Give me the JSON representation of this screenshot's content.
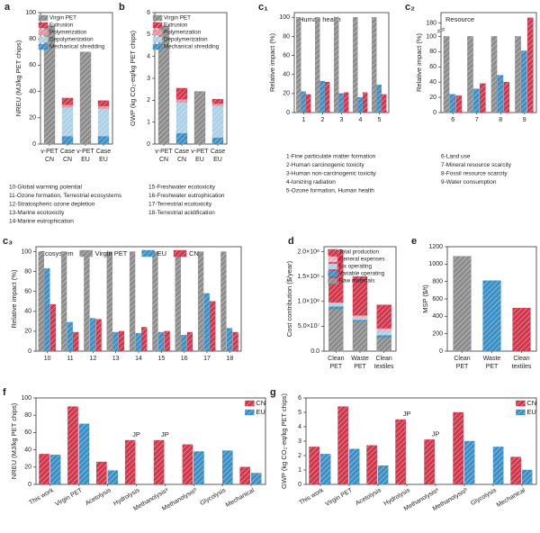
{
  "chart_data": [
    {
      "type": "bar",
      "stacked": true,
      "panel": "a",
      "ylabel": "NREU (MJ/kg PET chips)",
      "categories": [
        [
          "v-PET",
          "CN"
        ],
        [
          "Case",
          "CN"
        ],
        [
          "v-PET",
          "EU"
        ],
        [
          "Case",
          "EU"
        ]
      ],
      "ylim": [
        0,
        100
      ],
      "yticks": [
        0,
        20,
        40,
        60,
        80,
        100
      ],
      "legend": "upper right",
      "series": [
        {
          "name": "Virgin PET",
          "color": "#8c8c8c",
          "values": [
            90,
            null,
            70,
            null
          ]
        },
        {
          "name": "Extrusion",
          "color": "#d2364b",
          "values": [
            null,
            5,
            null,
            4
          ]
        },
        {
          "name": "Polymerization",
          "color": "#e8919f",
          "values": [
            null,
            2,
            null,
            2
          ]
        },
        {
          "name": "Depolymerization",
          "color": "#acd0e6",
          "values": [
            null,
            22,
            null,
            21
          ]
        },
        {
          "name": "Mechanical shredding",
          "color": "#3b8fc5",
          "values": [
            null,
            6,
            null,
            6
          ]
        }
      ]
    },
    {
      "type": "bar",
      "stacked": true,
      "panel": "b",
      "ylabel": "GWP (kg CO₂-eq/kg PET chips)",
      "categories": [
        [
          "v-PET",
          "CN"
        ],
        [
          "Case",
          "CN"
        ],
        [
          "v-PET",
          "EU"
        ],
        [
          "Case",
          "EU"
        ]
      ],
      "ylim": [
        0,
        6
      ],
      "yticks": [
        0,
        1,
        2,
        3,
        4,
        5,
        6
      ],
      "legend": "upper right",
      "series": [
        {
          "name": "Virgin PET",
          "color": "#8c8c8c",
          "values": [
            5.4,
            null,
            2.4,
            null
          ]
        },
        {
          "name": "Extrusion",
          "color": "#d2364b",
          "values": [
            null,
            0.5,
            null,
            0.2
          ]
        },
        {
          "name": "Polymerization",
          "color": "#e8919f",
          "values": [
            null,
            0.15,
            null,
            0.1
          ]
        },
        {
          "name": "Depolymerization",
          "color": "#acd0e6",
          "values": [
            null,
            1.4,
            null,
            1.45
          ]
        },
        {
          "name": "Mechanical shredding",
          "color": "#3b8fc5",
          "values": [
            null,
            0.5,
            null,
            0.3
          ]
        }
      ]
    },
    {
      "type": "bar",
      "panel": "c₁",
      "title": "Human health",
      "ylabel": "Relative impact (%)",
      "categories": [
        "1",
        "2",
        "3",
        "4",
        "5"
      ],
      "ylim": [
        0,
        105
      ],
      "yticks": [
        0,
        20,
        40,
        60,
        80,
        100
      ],
      "series": [
        {
          "color": "#8c8c8c",
          "values": [
            100,
            100,
            100,
            100,
            100
          ]
        },
        {
          "color": "#3b8fc5",
          "values": [
            22,
            33,
            20,
            16,
            29
          ]
        },
        {
          "color": "#d2364b",
          "values": [
            19,
            32,
            21,
            21,
            19
          ]
        }
      ]
    },
    {
      "type": "bar",
      "panel": "c₂",
      "title": "Resource",
      "ylabel": "Relative impact (%)",
      "categories": [
        "6",
        "7",
        "8",
        "9"
      ],
      "ylim": [
        0,
        190
      ],
      "ybreak": [
        105,
        175
      ],
      "yticks": [
        0,
        20,
        40,
        60,
        80,
        100,
        180
      ],
      "series": [
        {
          "color": "#8c8c8c",
          "values": [
            100,
            100,
            100,
            100
          ]
        },
        {
          "color": "#3b8fc5",
          "values": [
            24,
            31,
            49,
            81
          ]
        },
        {
          "color": "#d2364b",
          "values": [
            22,
            38,
            40,
            185
          ]
        }
      ]
    },
    {
      "type": "bar",
      "panel": "c₃",
      "title": "Ecosystem",
      "ylabel": "Relative impact (%)",
      "categories": [
        "10",
        "11",
        "12",
        "13",
        "14",
        "15",
        "16",
        "17",
        "18"
      ],
      "ylim": [
        0,
        105
      ],
      "yticks": [
        0,
        20,
        40,
        60,
        80,
        100
      ],
      "legend": "upper center",
      "series": [
        {
          "name": "Virgin PET",
          "color": "#8c8c8c",
          "values": [
            100,
            100,
            100,
            100,
            100,
            100,
            100,
            100,
            100
          ]
        },
        {
          "name": "EU",
          "color": "#3b8fc5",
          "values": [
            83,
            29,
            33,
            19,
            18,
            19,
            16,
            58,
            23
          ]
        },
        {
          "name": "CN",
          "color": "#d2364b",
          "values": [
            47,
            19,
            32,
            20,
            24,
            20,
            19,
            50,
            19
          ]
        }
      ]
    },
    {
      "type": "bar",
      "stacked": true,
      "panel": "d",
      "ylabel": "Cost contribution ($/year)",
      "categories": [
        [
          "Clean",
          "PET"
        ],
        [
          "Waste",
          "PET"
        ],
        [
          "Clean",
          "textiles"
        ]
      ],
      "ylim": [
        0,
        210000000
      ],
      "yticks": [
        {
          "value": 0,
          "label": "0.0"
        },
        {
          "value": 50000000,
          "label": "5.0×10⁷"
        },
        {
          "value": 100000000,
          "label": "1.0×10⁸"
        },
        {
          "value": 150000000,
          "label": "1.5×10⁸"
        },
        {
          "value": 200000000,
          "label": "2.0×10⁸"
        }
      ],
      "legend": "upper right",
      "series": [
        {
          "name": "Total production",
          "color": "#d2364b",
          "values": [
            105000000,
            78000000,
            47000000
          ]
        },
        {
          "name": "General expenses",
          "color": "#f0b3bd",
          "values": [
            3000000,
            5000000,
            6000000
          ]
        },
        {
          "name": "Fix operating",
          "color": "#acd0e6",
          "values": [
            5000000,
            4000000,
            8000000
          ]
        },
        {
          "name": "Variable operating",
          "color": "#3b8fc5",
          "values": [
            5000000,
            3000000,
            4000000
          ]
        },
        {
          "name": "Raw materials",
          "color": "#8c8c8c",
          "values": [
            85000000,
            60000000,
            28000000
          ]
        }
      ]
    },
    {
      "type": "bar",
      "panel": "e",
      "ylabel": "MSP ($/t)",
      "categories": [
        [
          "Clean",
          "PET"
        ],
        [
          "Waste",
          "PET"
        ],
        [
          "Clean",
          "textiles"
        ]
      ],
      "ylim": [
        0,
        1200
      ],
      "yticks": [
        0,
        200,
        400,
        600,
        800,
        1000,
        1200
      ],
      "values": [
        1090,
        810,
        495
      ],
      "colors": [
        "#8c8c8c",
        "#3b8fc5",
        "#d2364b"
      ]
    },
    {
      "type": "bar",
      "panel": "f",
      "ylabel": "NREU (MJ/kg PET chips)",
      "categories": [
        "This work",
        "Virgin PET",
        "Acetolysis",
        "Hydrolysis",
        "Methanolysisᵃ",
        "Methanolysisᵇ",
        "Glycolysis",
        "Mechanical"
      ],
      "ylim": [
        0,
        100
      ],
      "yticks": [
        0,
        20,
        40,
        60,
        80,
        100
      ],
      "legend": "upper right",
      "annotations": [
        {
          "text": "JP",
          "category": "Hydrolysis"
        },
        {
          "text": "JP",
          "category": "Methanolysisᵃ"
        }
      ],
      "series": [
        {
          "name": "CN",
          "color": "#d2364b",
          "values": [
            35,
            90,
            26,
            51,
            51,
            46,
            null,
            20
          ]
        },
        {
          "name": "EU",
          "color": "#3b8fc5",
          "values": [
            34,
            70,
            16,
            null,
            null,
            38,
            39,
            13
          ]
        }
      ]
    },
    {
      "type": "bar",
      "panel": "g",
      "ylabel": "GWP (kg CO₂-eq/kg PET chips)",
      "categories": [
        "This work",
        "Virgin PET",
        "Acetolysis",
        "Hydrolysis",
        "Methanolysisᵃ",
        "Methanolysisᵇ",
        "Glycolysis",
        "Mechanical"
      ],
      "ylim": [
        0,
        6
      ],
      "yticks": [
        0,
        1,
        2,
        3,
        4,
        5,
        6
      ],
      "legend": "upper right",
      "annotations": [
        {
          "text": "JP",
          "category": "Hydrolysis"
        },
        {
          "text": "JP",
          "category": "Methanolysisᵃ"
        }
      ],
      "series": [
        {
          "name": "CN",
          "color": "#d2364b",
          "values": [
            2.6,
            5.4,
            2.7,
            4.5,
            3.1,
            5.0,
            null,
            1.9
          ]
        },
        {
          "name": "EU",
          "color": "#3b8fc5",
          "values": [
            2.1,
            2.45,
            1.3,
            null,
            null,
            3.0,
            2.6,
            1.0
          ]
        }
      ]
    }
  ],
  "notes": [
    [
      "10-Global warming potential",
      "11-Ozone formation, Terrestrial ecosystems",
      "12-Stratospheric ozone depletion",
      "13-Marine ecotoxicity",
      "14-Marine eutrophication"
    ],
    [
      "15-Freshwater ecotoxicity",
      "16-Freshwater eutrophication",
      "17-Terrestrial ecotoxicity",
      "18-Terrestrial acidification"
    ],
    [
      "1-Fine particulate matter formation",
      "2-Human carcinogenic toxicity",
      "3-Human non-carcinogenic toxicity",
      "4-Ionizing radiation",
      "5-Ozone formation, Human health"
    ],
    [
      "6-Land use",
      "7-Mineral resource scarcity",
      "8-Fossil resource scarcity",
      "9-Water consumption"
    ]
  ]
}
